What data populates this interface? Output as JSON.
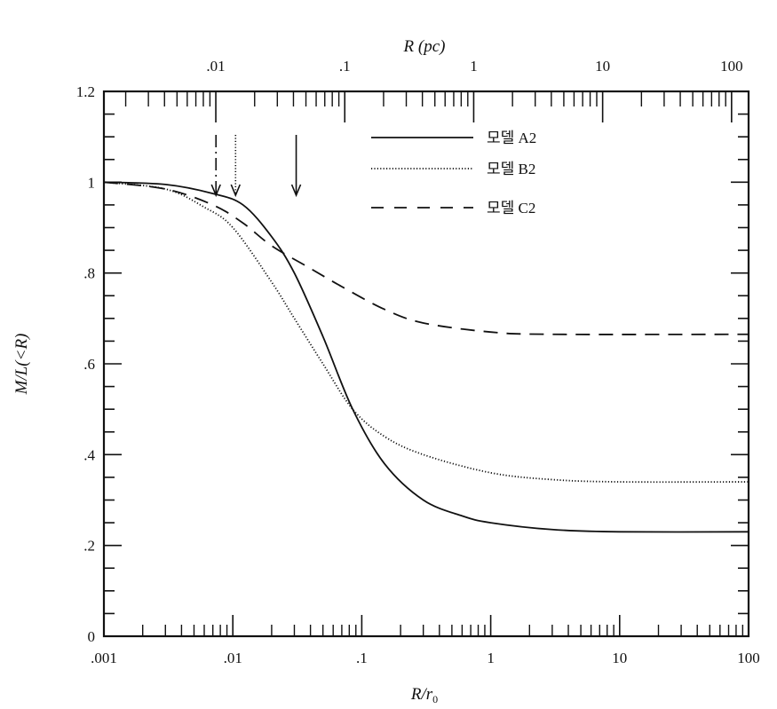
{
  "chart_data": {
    "type": "line",
    "title": "",
    "xlabel": "R/r0",
    "xlabel_parts": {
      "main": "R/",
      "var": "r",
      "sub": "0"
    },
    "ylabel": "M/L(<R)",
    "top_xlabel": "R (pc)",
    "x_scale": "log",
    "xlim": [
      0.001,
      100
    ],
    "ylim": [
      0,
      1.2
    ],
    "x_ticks": [
      0.001,
      0.01,
      0.1,
      1,
      10,
      100
    ],
    "x_tick_labels": [
      ".001",
      ".01",
      ".1",
      "1",
      "10",
      "100"
    ],
    "y_ticks": [
      0,
      0.2,
      0.4,
      0.6,
      0.8,
      1,
      1.2
    ],
    "y_tick_labels": [
      "0",
      ".2",
      ".4",
      ".6",
      ".8",
      "1",
      "1.2"
    ],
    "top_axis": {
      "label": "R (pc)",
      "pc_per_r0": 1.355,
      "ticks": [
        0.01,
        0.1,
        1,
        10,
        100
      ],
      "tick_labels": [
        ".01",
        ".1",
        "1",
        "10",
        "100"
      ]
    },
    "legend_position": "top-right",
    "series": [
      {
        "name": "모델 A2",
        "style": "solid",
        "x": [
          0.001,
          0.003,
          0.007,
          0.012,
          0.02,
          0.03,
          0.05,
          0.085,
          0.15,
          0.3,
          0.6,
          1,
          3,
          10,
          100
        ],
        "y": [
          1.0,
          0.995,
          0.975,
          0.95,
          0.88,
          0.8,
          0.66,
          0.5,
          0.38,
          0.3,
          0.265,
          0.25,
          0.235,
          0.23,
          0.23
        ]
      },
      {
        "name": "모델 B2",
        "style": "dotted",
        "x": [
          0.001,
          0.003,
          0.006,
          0.01,
          0.02,
          0.03,
          0.05,
          0.085,
          0.15,
          0.3,
          1,
          3,
          10,
          100
        ],
        "y": [
          1.0,
          0.985,
          0.945,
          0.9,
          0.78,
          0.7,
          0.6,
          0.5,
          0.44,
          0.4,
          0.36,
          0.345,
          0.34,
          0.34
        ]
      },
      {
        "name": "모델 C2",
        "style": "dashed",
        "x": [
          0.001,
          0.003,
          0.007,
          0.012,
          0.02,
          0.04,
          0.07,
          0.15,
          0.3,
          1,
          3,
          100
        ],
        "y": [
          1.0,
          0.985,
          0.95,
          0.91,
          0.86,
          0.81,
          0.77,
          0.72,
          0.69,
          0.67,
          0.665,
          0.665
        ]
      }
    ],
    "annotations": [
      {
        "type": "arrow",
        "style": "dashdot",
        "x": 0.0074
      },
      {
        "type": "arrow",
        "style": "dotted",
        "x": 0.0105
      },
      {
        "type": "arrow",
        "style": "solid",
        "x": 0.031
      }
    ]
  }
}
